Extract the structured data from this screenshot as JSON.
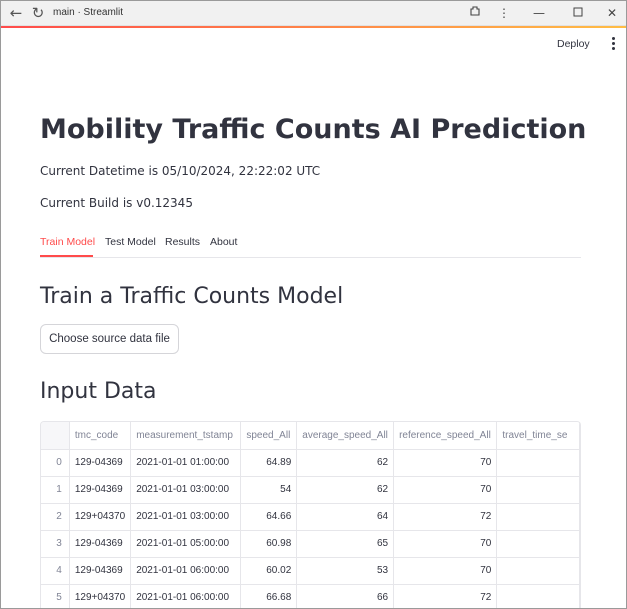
{
  "window": {
    "title": "main · Streamlit"
  },
  "header": {
    "deploy_label": "Deploy"
  },
  "main": {
    "title": "Mobility Traffic Counts AI Prediction",
    "datetime_text": "Current Datetime is 05/10/2024, 22:22:02 UTC",
    "build_text": "Current Build is v0.12345",
    "tabs": [
      {
        "label": "Train Model",
        "active": true
      },
      {
        "label": "Test Model",
        "active": false
      },
      {
        "label": "Results",
        "active": false
      },
      {
        "label": "About",
        "active": false
      }
    ],
    "section_title": "Train a Traffic Counts Model",
    "upload_button_label": "Choose source data file",
    "input_data_title": "Input Data"
  },
  "table": {
    "columns": [
      "",
      "tmc_code",
      "measurement_tstamp",
      "speed_All",
      "average_speed_All",
      "reference_speed_All",
      "travel_time_se"
    ],
    "rows": [
      [
        "0",
        "129-04369",
        "2021-01-01 01:00:00",
        "64.89",
        "62",
        "70",
        ""
      ],
      [
        "1",
        "129-04369",
        "2021-01-01 03:00:00",
        "54",
        "62",
        "70",
        ""
      ],
      [
        "2",
        "129+04370",
        "2021-01-01 03:00:00",
        "64.66",
        "64",
        "72",
        ""
      ],
      [
        "3",
        "129-04369",
        "2021-01-01 05:00:00",
        "60.98",
        "65",
        "70",
        ""
      ],
      [
        "4",
        "129-04369",
        "2021-01-01 06:00:00",
        "60.02",
        "53",
        "70",
        ""
      ],
      [
        "5",
        "129+04370",
        "2021-01-01 06:00:00",
        "66.68",
        "66",
        "72",
        ""
      ]
    ]
  },
  "colors": {
    "accent": "#ff4b4b",
    "text": "#31333f",
    "muted": "#808495",
    "border": "#e6e6ea"
  }
}
